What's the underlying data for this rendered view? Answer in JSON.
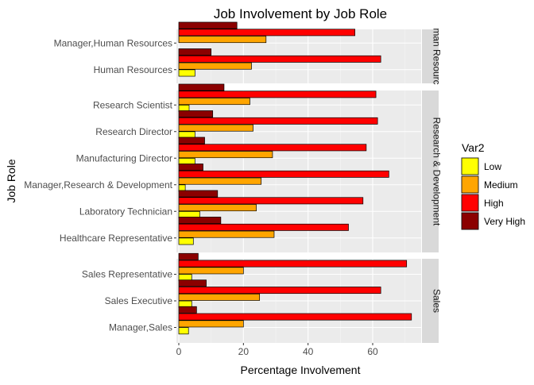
{
  "chart_data": {
    "type": "bar",
    "orientation": "horizontal",
    "title": "Job Involvement by Job Role",
    "xlabel": "Percentage Involvement",
    "ylabel": "Job Role",
    "xlim": [
      0,
      75
    ],
    "x_ticks": [
      0,
      20,
      40,
      60
    ],
    "grid": true,
    "legend": {
      "title": "Var2",
      "position": "right",
      "items": [
        {
          "label": "Low",
          "color": "#FFFF00"
        },
        {
          "label": "Medium",
          "color": "#FFA500"
        },
        {
          "label": "High",
          "color": "#FF0000"
        },
        {
          "label": "Very High",
          "color": "#8B0000"
        }
      ]
    },
    "facets": [
      {
        "strip": "Human Resources",
        "strip_visible": "man Resourc",
        "categories": [
          "Manager,Human Resources",
          "Human Resources"
        ],
        "series": [
          {
            "name": "Low",
            "values": [
              0,
              5
            ]
          },
          {
            "name": "Medium",
            "values": [
              27,
              22.5
            ]
          },
          {
            "name": "High",
            "values": [
              54.5,
              62.5
            ]
          },
          {
            "name": "Very High",
            "values": [
              18,
              10
            ]
          }
        ]
      },
      {
        "strip": "Research & Development",
        "strip_visible": "Research & Development",
        "categories": [
          "Research Scientist",
          "Research Director",
          "Manufacturing Director",
          "Manager,Research & Development",
          "Laboratory Technician",
          "Healthcare Representative"
        ],
        "series": [
          {
            "name": "Low",
            "values": [
              3.2,
              5,
              5,
              2,
              6.5,
              4.5
            ]
          },
          {
            "name": "Medium",
            "values": [
              22,
              23,
              29,
              25.5,
              24,
              29.5
            ]
          },
          {
            "name": "High",
            "values": [
              61,
              61.5,
              58,
              65,
              57,
              52.5
            ]
          },
          {
            "name": "Very High",
            "values": [
              14,
              10.5,
              8,
              7.5,
              12,
              13
            ]
          }
        ]
      },
      {
        "strip": "Sales",
        "strip_visible": "Sales",
        "categories": [
          "Sales Representative",
          "Sales Executive",
          "Manager,Sales"
        ],
        "series": [
          {
            "name": "Low",
            "values": [
              4,
              4,
              3
            ]
          },
          {
            "name": "Medium",
            "values": [
              20,
              25,
              20
            ]
          },
          {
            "name": "High",
            "values": [
              70.5,
              62.5,
              72
            ]
          },
          {
            "name": "Very High",
            "values": [
              6,
              8.5,
              5.5
            ]
          }
        ]
      }
    ]
  }
}
